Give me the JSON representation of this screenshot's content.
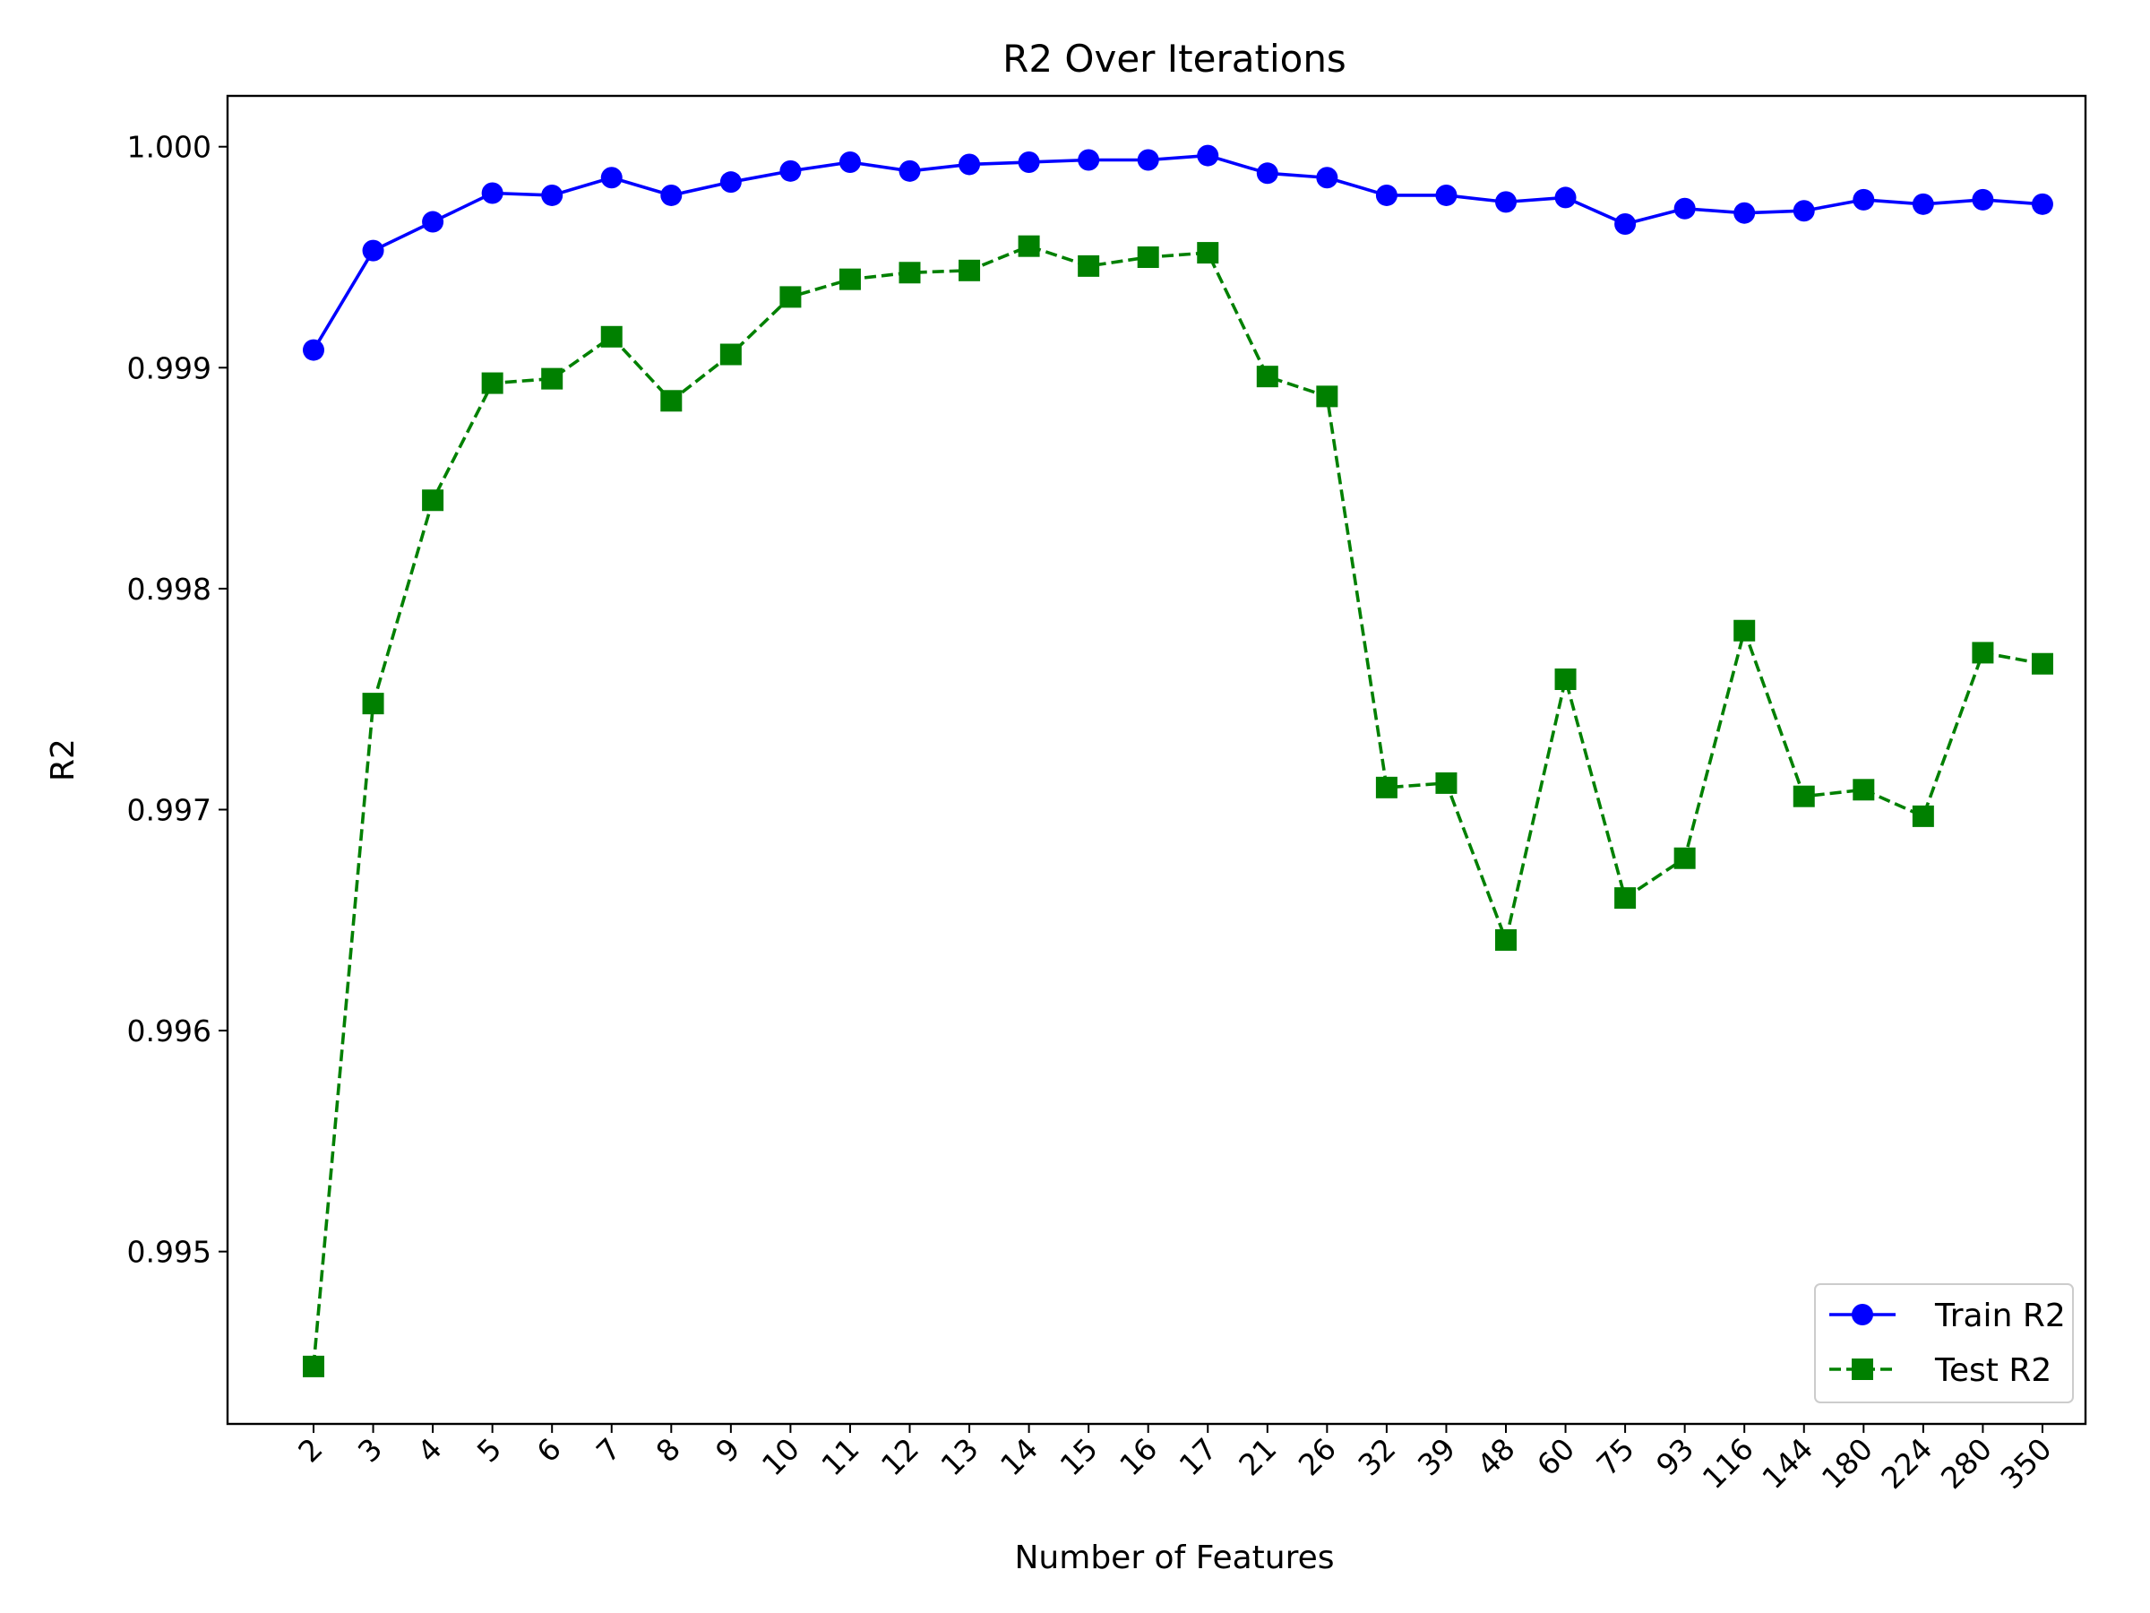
{
  "chart_data": {
    "type": "line",
    "title": "R2 Over Iterations",
    "xlabel": "Number of Features",
    "ylabel": "R2",
    "categories": [
      "2",
      "3",
      "4",
      "5",
      "6",
      "7",
      "8",
      "9",
      "10",
      "11",
      "12",
      "13",
      "14",
      "15",
      "16",
      "17",
      "21",
      "26",
      "32",
      "39",
      "48",
      "60",
      "75",
      "93",
      "116",
      "144",
      "180",
      "224",
      "280",
      "350"
    ],
    "ylim": [
      0.99422,
      1.00023
    ],
    "yticks": [
      0.995,
      0.996,
      0.997,
      0.998,
      0.999,
      1.0
    ],
    "ytick_labels": [
      "0.995",
      "0.996",
      "0.997",
      "0.998",
      "0.999",
      "1.000"
    ],
    "grid": false,
    "legend_position": "lower right",
    "series": [
      {
        "name": "Train R2",
        "color": "#0000ff",
        "marker": "circle",
        "linestyle": "solid",
        "values": [
          0.99908,
          0.99953,
          0.99966,
          0.99979,
          0.99978,
          0.99986,
          0.99978,
          0.99984,
          0.99989,
          0.99993,
          0.99989,
          0.99992,
          0.99993,
          0.99994,
          0.99994,
          0.99996,
          0.99988,
          0.99986,
          0.99978,
          0.99978,
          0.99975,
          0.99977,
          0.99965,
          0.99972,
          0.9997,
          0.99971,
          0.99976,
          0.99974,
          0.99976,
          0.99974
        ]
      },
      {
        "name": "Test R2",
        "color": "#008000",
        "marker": "square",
        "linestyle": "dashed",
        "values": [
          0.99448,
          0.99748,
          0.9984,
          0.99893,
          0.99895,
          0.99914,
          0.99885,
          0.99906,
          0.99932,
          0.9994,
          0.99943,
          0.99944,
          0.99955,
          0.99946,
          0.9995,
          0.99952,
          0.99896,
          0.99887,
          0.9971,
          0.99712,
          0.99641,
          0.99759,
          0.9966,
          0.99678,
          0.99781,
          0.99706,
          0.99709,
          0.99697,
          0.99771,
          0.99766
        ]
      }
    ]
  }
}
